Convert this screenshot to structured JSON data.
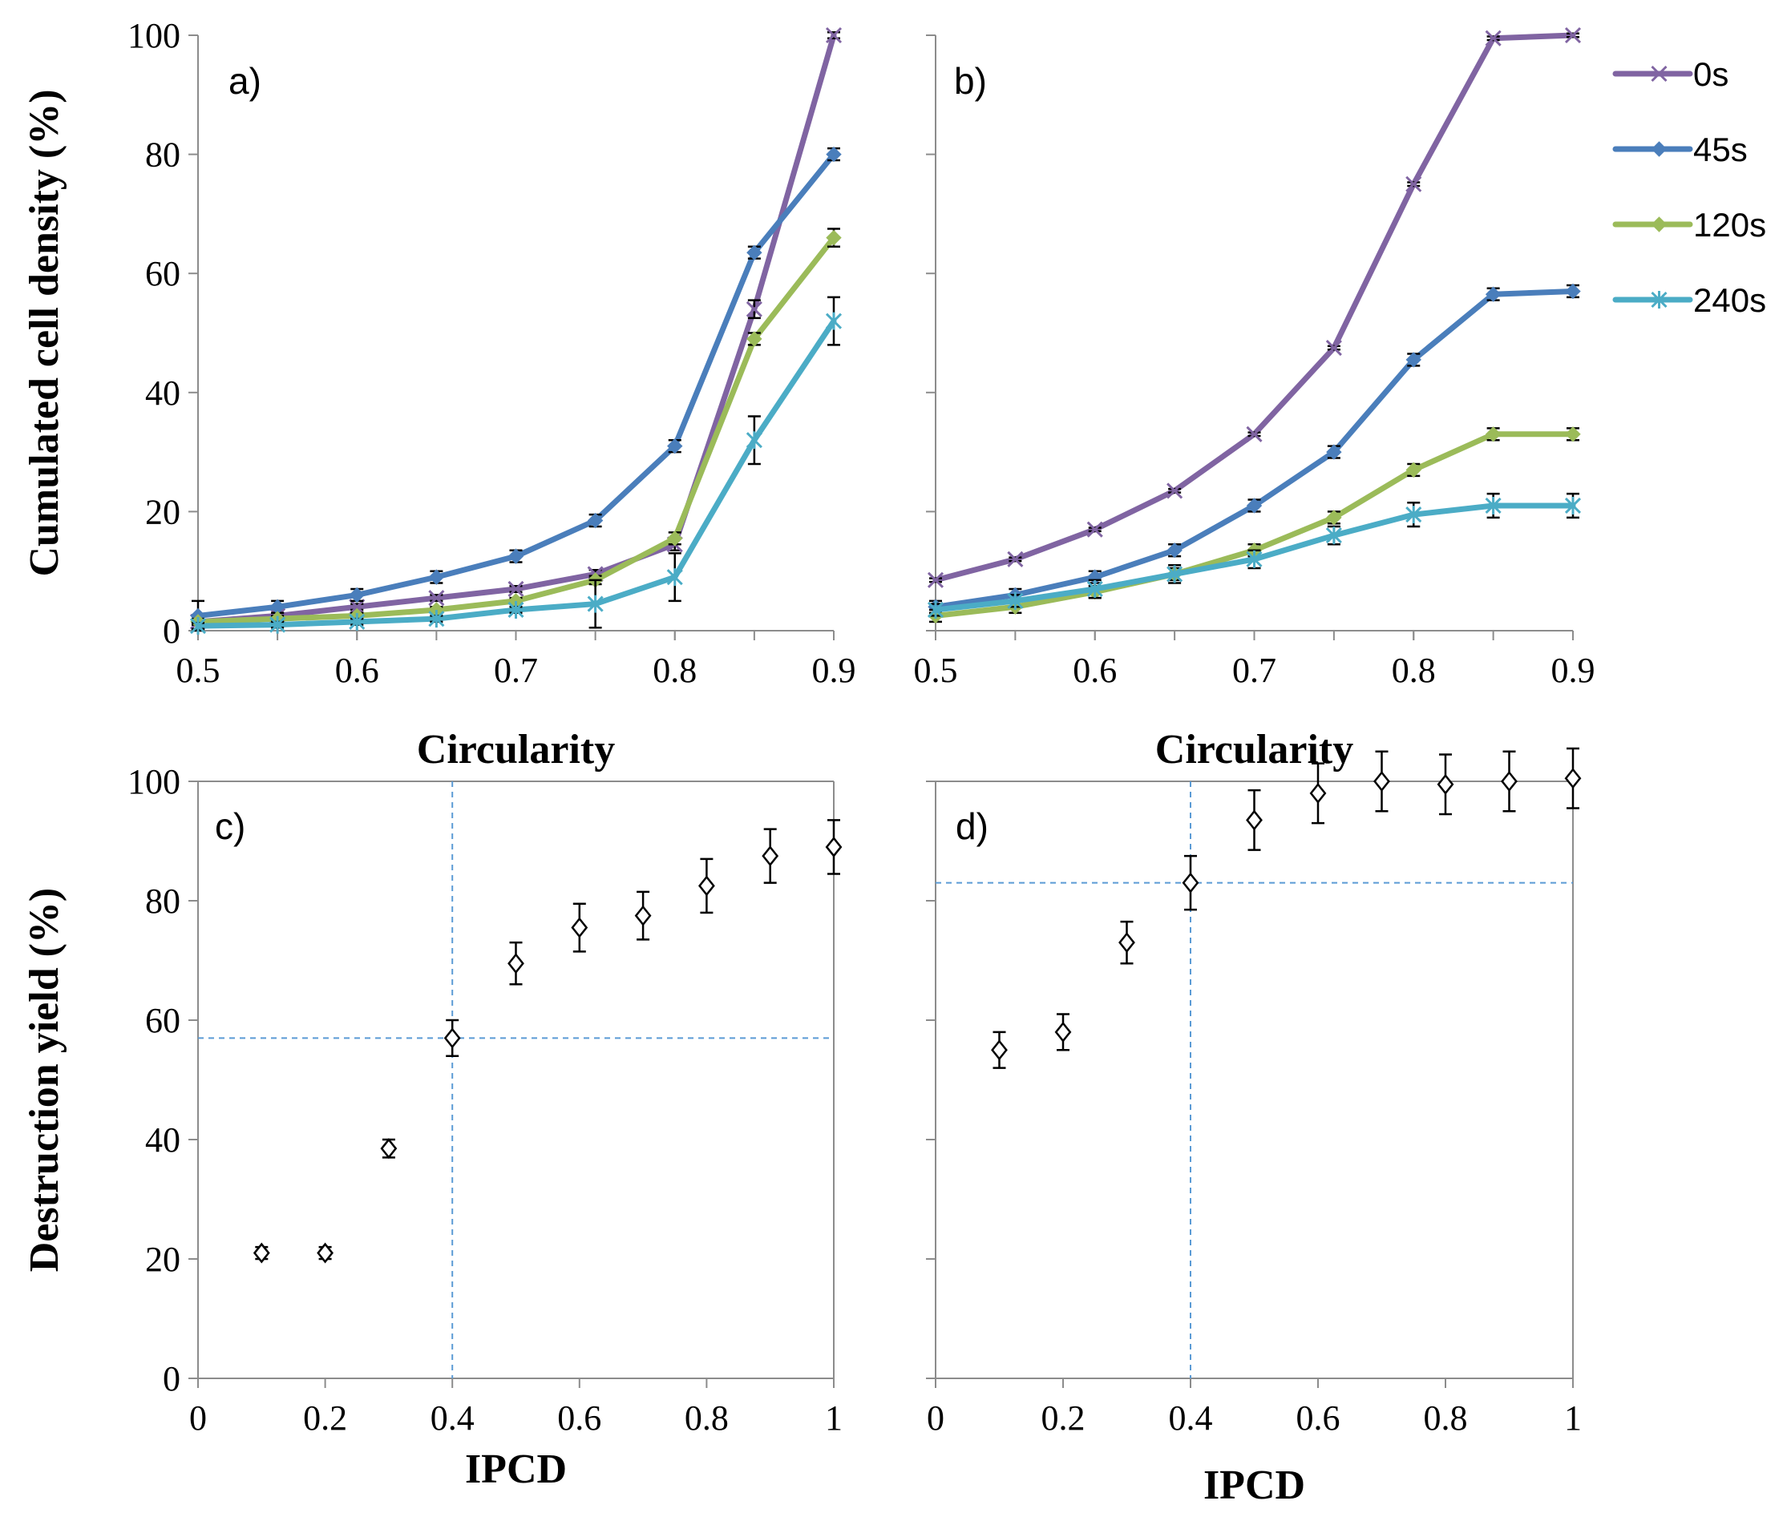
{
  "chart_data": [
    {
      "panel": "a)",
      "type": "line",
      "xlabel": "Circularity",
      "ylabel": "Cumulated cell density (%)",
      "xlim": [
        0.5,
        0.9
      ],
      "ylim": [
        0,
        100
      ],
      "xticks": [
        "0.5",
        "0.6",
        "0.7",
        "0.8",
        "0.9"
      ],
      "yticks": [
        "0",
        "20",
        "40",
        "60",
        "80",
        "100"
      ],
      "x": [
        0.5,
        0.55,
        0.6,
        0.65,
        0.7,
        0.75,
        0.8,
        0.85,
        0.9
      ],
      "series": [
        {
          "name": "0s",
          "color": "#8064A2",
          "marker": "x",
          "values": [
            1.5,
            2.5,
            4,
            5.5,
            7,
            9.5,
            14.5,
            54,
            100
          ],
          "errors": [
            0.5,
            0.5,
            0.5,
            0.5,
            0.5,
            0.7,
            1,
            1.5,
            0.5
          ]
        },
        {
          "name": "45s",
          "color": "#4A7EBB",
          "marker": "diamond",
          "values": [
            2.5,
            4,
            6,
            9,
            12.5,
            18.5,
            31,
            63.5,
            80
          ],
          "errors": [
            2.5,
            1,
            1,
            1,
            1,
            1,
            1,
            1,
            1
          ]
        },
        {
          "name": "120s",
          "color": "#9BBB59",
          "marker": "diamond",
          "values": [
            1.5,
            2,
            2.5,
            3.5,
            5,
            8.5,
            15.5,
            49,
            66
          ],
          "errors": [
            0.5,
            0.5,
            0.5,
            0.5,
            0.5,
            0.7,
            1,
            1,
            1.5
          ]
        },
        {
          "name": "240s",
          "color": "#4BACC6",
          "marker": "asterisk",
          "values": [
            0.8,
            1,
            1.5,
            2,
            3.5,
            4.5,
            9,
            32,
            52
          ],
          "errors": [
            0.5,
            0.5,
            0.5,
            0.5,
            0.5,
            4,
            4,
            4,
            4
          ]
        }
      ]
    },
    {
      "panel": "b)",
      "type": "line",
      "xlabel": "Circularity",
      "ylabel": "",
      "xlim": [
        0.5,
        0.9
      ],
      "ylim": [
        0,
        100
      ],
      "xticks": [
        "0.5",
        "0.6",
        "0.7",
        "0.8",
        "0.9"
      ],
      "yticks": [],
      "x": [
        0.5,
        0.55,
        0.6,
        0.65,
        0.7,
        0.75,
        0.8,
        0.85,
        0.9
      ],
      "series": [
        {
          "name": "0s",
          "color": "#8064A2",
          "marker": "x",
          "values": [
            8.5,
            12,
            17,
            23.5,
            33,
            47.5,
            75,
            99.5,
            100
          ],
          "errors": [
            0.3,
            0.3,
            0.3,
            0.3,
            0.3,
            0.3,
            0.3,
            0.3,
            0.3
          ]
        },
        {
          "name": "45s",
          "color": "#4A7EBB",
          "marker": "diamond",
          "values": [
            4,
            6,
            9,
            13.5,
            21,
            30,
            45.5,
            56.5,
            57
          ],
          "errors": [
            1,
            1,
            1,
            1,
            1,
            1,
            1,
            1,
            1
          ]
        },
        {
          "name": "120s",
          "color": "#9BBB59",
          "marker": "diamond",
          "values": [
            2.5,
            4,
            6.5,
            9.5,
            13.5,
            19,
            27,
            33,
            33
          ],
          "errors": [
            1,
            1,
            1,
            1,
            1,
            1,
            1,
            1,
            1
          ]
        },
        {
          "name": "240s",
          "color": "#4BACC6",
          "marker": "asterisk",
          "values": [
            3.5,
            5,
            7,
            9.5,
            12,
            16,
            19.5,
            21,
            21
          ],
          "errors": [
            1,
            1,
            1.5,
            1.5,
            1.5,
            1.5,
            2,
            2,
            2
          ]
        }
      ]
    },
    {
      "panel": "c)",
      "type": "scatter",
      "xlabel": "IPCD",
      "ylabel": "Destruction yield (%)",
      "xlim": [
        0,
        1
      ],
      "ylim": [
        0,
        100
      ],
      "xticks": [
        "0",
        "0.2",
        "0.4",
        "0.6",
        "0.8",
        "1"
      ],
      "yticks": [
        "0",
        "20",
        "40",
        "60",
        "80",
        "100"
      ],
      "reference_lines": {
        "x": 0.4,
        "y": 57,
        "color": "#5B9BD5"
      },
      "x": [
        0.1,
        0.2,
        0.3,
        0.4,
        0.5,
        0.6,
        0.7,
        0.8,
        0.9,
        1.0
      ],
      "values": [
        21,
        21,
        38.5,
        57,
        69.5,
        75.5,
        77.5,
        82.5,
        87.5,
        89
      ],
      "errors": [
        1,
        1,
        1.5,
        3,
        3.5,
        4,
        4,
        4.5,
        4.5,
        4.5
      ]
    },
    {
      "panel": "d)",
      "type": "scatter",
      "xlabel": "IPCD",
      "ylabel": "",
      "xlim": [
        0,
        1
      ],
      "ylim": [
        0,
        100
      ],
      "xticks": [
        "0",
        "0.2",
        "0.4",
        "0.6",
        "0.8",
        "1"
      ],
      "yticks": [],
      "reference_lines": {
        "x": 0.4,
        "y": 83,
        "color": "#5B9BD5"
      },
      "x": [
        0.1,
        0.2,
        0.3,
        0.4,
        0.5,
        0.6,
        0.7,
        0.8,
        0.9,
        1.0
      ],
      "values": [
        55,
        58,
        73,
        83,
        93.5,
        98,
        100,
        99.5,
        100,
        100.5
      ],
      "errors": [
        3,
        3,
        3.5,
        4.5,
        5,
        5,
        5,
        5,
        5,
        5
      ]
    }
  ],
  "legend": {
    "placement": "right of panel b, top",
    "items": [
      {
        "label": "0s",
        "color": "#8064A2",
        "marker": "x"
      },
      {
        "label": "45s",
        "color": "#4A7EBB",
        "marker": "diamond"
      },
      {
        "label": "120s",
        "color": "#9BBB59",
        "marker": "diamond"
      },
      {
        "label": "240s",
        "color": "#4BACC6",
        "marker": "asterisk"
      }
    ]
  }
}
